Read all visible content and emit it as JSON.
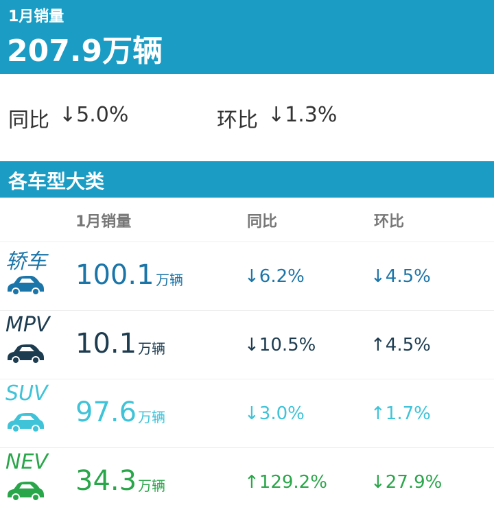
{
  "header": {
    "title": "1月销量",
    "total": "207.9万辆"
  },
  "summary": {
    "yoy_label": "同比",
    "yoy": "↓5.0%",
    "mom_label": "环比",
    "mom": "↓1.3%"
  },
  "section": {
    "title": "各车型大类"
  },
  "table": {
    "columns": [
      "1月销量",
      "同比",
      "环比"
    ],
    "rows": [
      {
        "name": "轿车",
        "volume": "100.1",
        "unit": "万辆",
        "yoy": "↓6.2%",
        "mom": "↓4.5%"
      },
      {
        "name": "MPV",
        "volume": "10.1",
        "unit": "万辆",
        "yoy": "↓10.5%",
        "mom": "↑4.5%"
      },
      {
        "name": "SUV",
        "volume": "97.6",
        "unit": "万辆",
        "yoy": "↓3.0%",
        "mom": "↑1.7%"
      },
      {
        "name": "NEV",
        "volume": "34.3",
        "unit": "万辆",
        "yoy": "↑129.2%",
        "mom": "↓27.9%"
      }
    ]
  }
}
